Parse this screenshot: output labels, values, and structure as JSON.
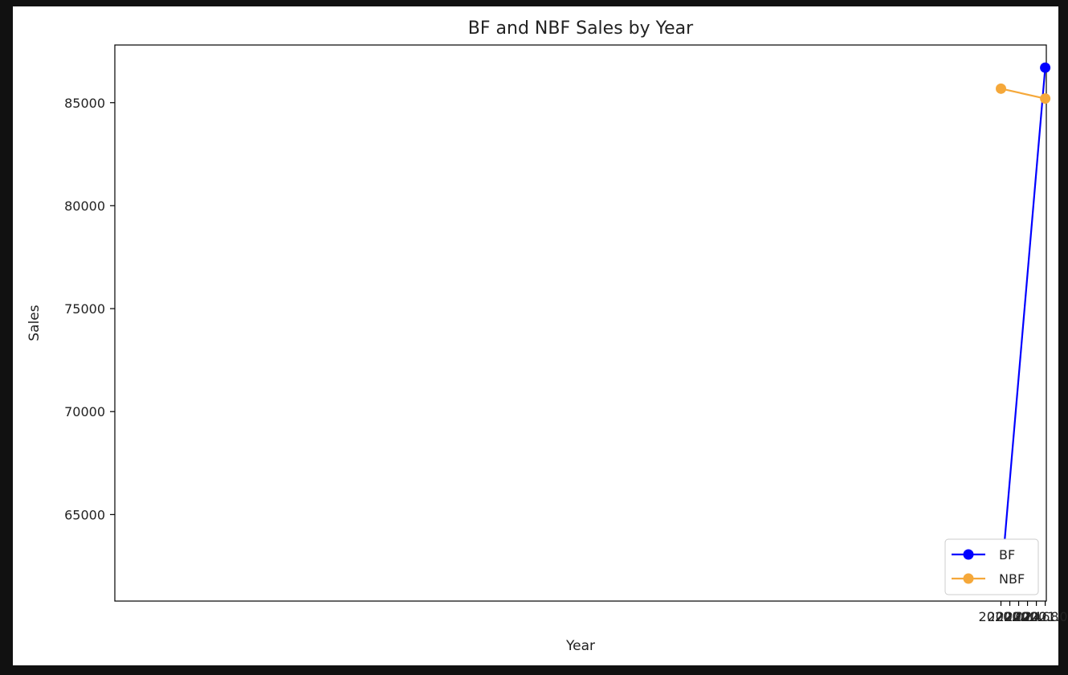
{
  "chart_data": {
    "type": "line",
    "title": "BF and NBF Sales by Year",
    "xlabel": "Year",
    "ylabel": "Sales",
    "xlim": [
      1999.975,
      2021.025
    ],
    "ylim": [
      60800,
      87800
    ],
    "xticks": [
      2020.0,
      2020.2,
      2020.4,
      2020.6,
      2020.8,
      2021.0
    ],
    "xtick_labels": [
      "2020.0",
      "2020.2",
      "2020.4",
      "2020.6",
      "2020.8",
      "2021.0"
    ],
    "yticks": [
      65000,
      70000,
      75000,
      80000,
      85000
    ],
    "ytick_labels": [
      "65000",
      "70000",
      "75000",
      "80000",
      "85000"
    ],
    "grid": false,
    "legend_position": "bottom-right",
    "series": [
      {
        "name": "BF",
        "color": "#0000ff",
        "marker": "circle",
        "x": [
          2020,
          2021
        ],
        "y": [
          61650,
          86700
        ]
      },
      {
        "name": "NBF",
        "color": "#f5a83a",
        "marker": "circle",
        "x": [
          2020,
          2021
        ],
        "y": [
          85680,
          85200
        ]
      }
    ]
  }
}
